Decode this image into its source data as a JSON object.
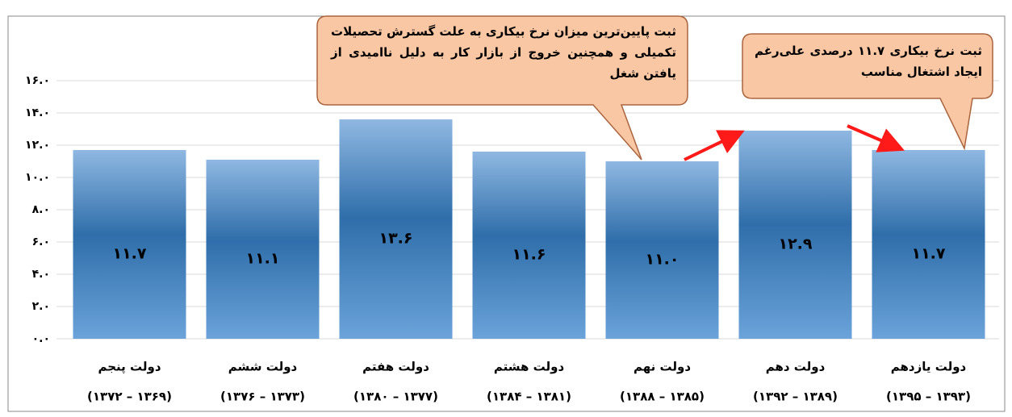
{
  "chart_data": {
    "type": "bar",
    "categories": [
      "دولت پنجم",
      "دولت ششم",
      "دولت هفتم",
      "دولت هشتم",
      "دولت نهم",
      "دولت دهم",
      "دولت یازدهم"
    ],
    "periods": [
      "(۱۳۷۲ – ۱۳۶۹)",
      "(۱۳۷۶ – ۱۳۷۳)",
      "(۱۳۸۰ – ۱۳۷۷)",
      "(۱۳۸۴ – ۱۳۸۱)",
      "(۱۳۸۸ – ۱۳۸۵)",
      "(۱۳۹۲ – ۱۳۸۹)",
      "(۱۳۹۵ – ۱۳۹۳)"
    ],
    "values": [
      11.7,
      11.1,
      13.6,
      11.6,
      11.0,
      12.9,
      11.7
    ],
    "value_labels": [
      "۱۱.۷",
      "۱۱.۱",
      "۱۳.۶",
      "۱۱.۶",
      "۱۱.۰",
      "۱۲.۹",
      "۱۱.۷"
    ],
    "color": "#2f6eaa",
    "ylim": [
      0,
      16
    ],
    "yticks": [
      {
        "value": 0,
        "label": "۰.۰"
      },
      {
        "value": 2,
        "label": "۲.۰"
      },
      {
        "value": 4,
        "label": "۴.۰"
      },
      {
        "value": 6,
        "label": "۶.۰"
      },
      {
        "value": 8,
        "label": "۸.۰"
      },
      {
        "value": 10,
        "label": "۱۰.۰"
      },
      {
        "value": 12,
        "label": "۱۲.۰"
      },
      {
        "value": 14,
        "label": "۱۴.۰"
      },
      {
        "value": 16,
        "label": "۱۶.۰"
      }
    ],
    "grid": true,
    "annotations": [
      "ثبت پایین‌ترین میزان نرخ بیکاری به علت گسترش تحصیلات تکمیلی و همچنین خروج از بازار کار به دلیل ناامیدی از یافتن شغل",
      "ثبت نرخ بیکاری ۱۱.۷ درصدی علی‌رغم ایجاد اشتغال مناسب"
    ]
  }
}
